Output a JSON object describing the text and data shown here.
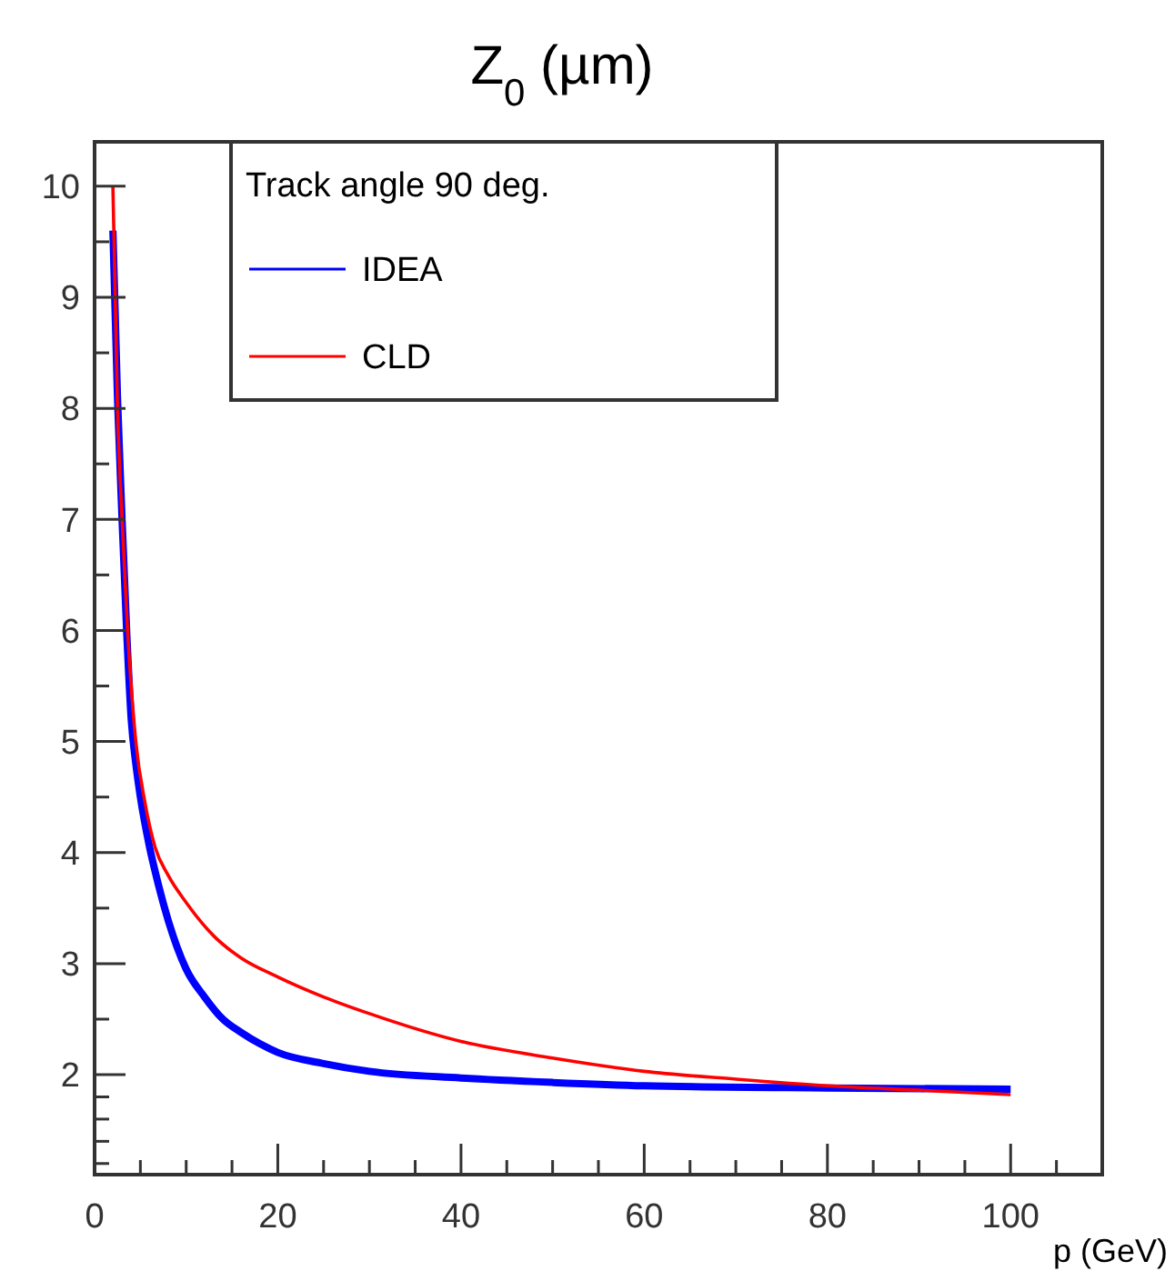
{
  "chart_data": {
    "type": "line",
    "title": "Z$_{0}$ (µm)",
    "xlabel": "p (GeV)",
    "legend_title": "Track angle 90 deg.",
    "legend": "top left",
    "grid": false,
    "marker": "none",
    "line_style": "solid",
    "xlim": [
      0,
      110
    ],
    "ylim": [
      1.1,
      10.4
    ],
    "xticks": [
      0,
      {
        "value": 5,
        "label": null
      },
      {
        "value": 10,
        "label": null
      },
      {
        "value": 15,
        "label": null
      },
      20,
      {
        "value": 25,
        "label": null
      },
      {
        "value": 30,
        "label": null
      },
      {
        "value": 35,
        "label": null
      },
      40,
      {
        "value": 45,
        "label": null
      },
      {
        "value": 50,
        "label": null
      },
      {
        "value": 55,
        "label": null
      },
      60,
      {
        "value": 65,
        "label": null
      },
      {
        "value": 70,
        "label": null
      },
      {
        "value": 75,
        "label": null
      },
      80,
      {
        "value": 85,
        "label": null
      },
      {
        "value": 90,
        "label": null
      },
      {
        "value": 95,
        "label": null
      },
      100,
      {
        "value": 105,
        "label": null
      }
    ],
    "yticks": [
      {
        "value": 1.2,
        "label": null
      },
      {
        "value": 1.4,
        "label": null
      },
      {
        "value": 1.6,
        "label": null
      },
      {
        "value": 1.8,
        "label": null
      },
      2,
      {
        "value": 2.5,
        "label": null
      },
      3,
      {
        "value": 3.5,
        "label": null
      },
      4,
      {
        "value": 4.5,
        "label": null
      },
      5,
      {
        "value": 5.5,
        "label": null
      },
      6,
      {
        "value": 6.5,
        "label": null
      },
      7,
      {
        "value": 7.5,
        "label": null
      },
      8,
      {
        "value": 8.5,
        "label": null
      },
      9,
      {
        "value": 9.5,
        "label": null
      },
      10
    ],
    "series": [
      {
        "name": "IDEA",
        "color": "#0000ff",
        "x": [
          2,
          2.5,
          3,
          3.5,
          4,
          4.5,
          5,
          6,
          7,
          8,
          9,
          10,
          12,
          14,
          16,
          18,
          20,
          25,
          30,
          40,
          50,
          60,
          80,
          100
        ],
        "values": [
          9.6,
          8.1,
          7.0,
          6.0,
          5.2,
          4.8,
          4.5,
          4.05,
          3.7,
          3.4,
          3.15,
          2.95,
          2.7,
          2.5,
          2.38,
          2.28,
          2.2,
          2.1,
          2.03,
          1.97,
          1.93,
          1.9,
          1.88,
          1.87
        ]
      },
      {
        "name": "CLD",
        "color": "#ff0000",
        "x": [
          2,
          2.5,
          3,
          3.6,
          4.5,
          5.5,
          6.6,
          8,
          10,
          13,
          16,
          20,
          25,
          30,
          40,
          50,
          60,
          70,
          80,
          90,
          100
        ],
        "values": [
          10.0,
          8.0,
          7.0,
          6.0,
          5.0,
          4.45,
          4.05,
          3.8,
          3.55,
          3.25,
          3.05,
          2.88,
          2.7,
          2.55,
          2.3,
          2.15,
          2.03,
          1.96,
          1.9,
          1.86,
          1.82
        ]
      }
    ]
  }
}
